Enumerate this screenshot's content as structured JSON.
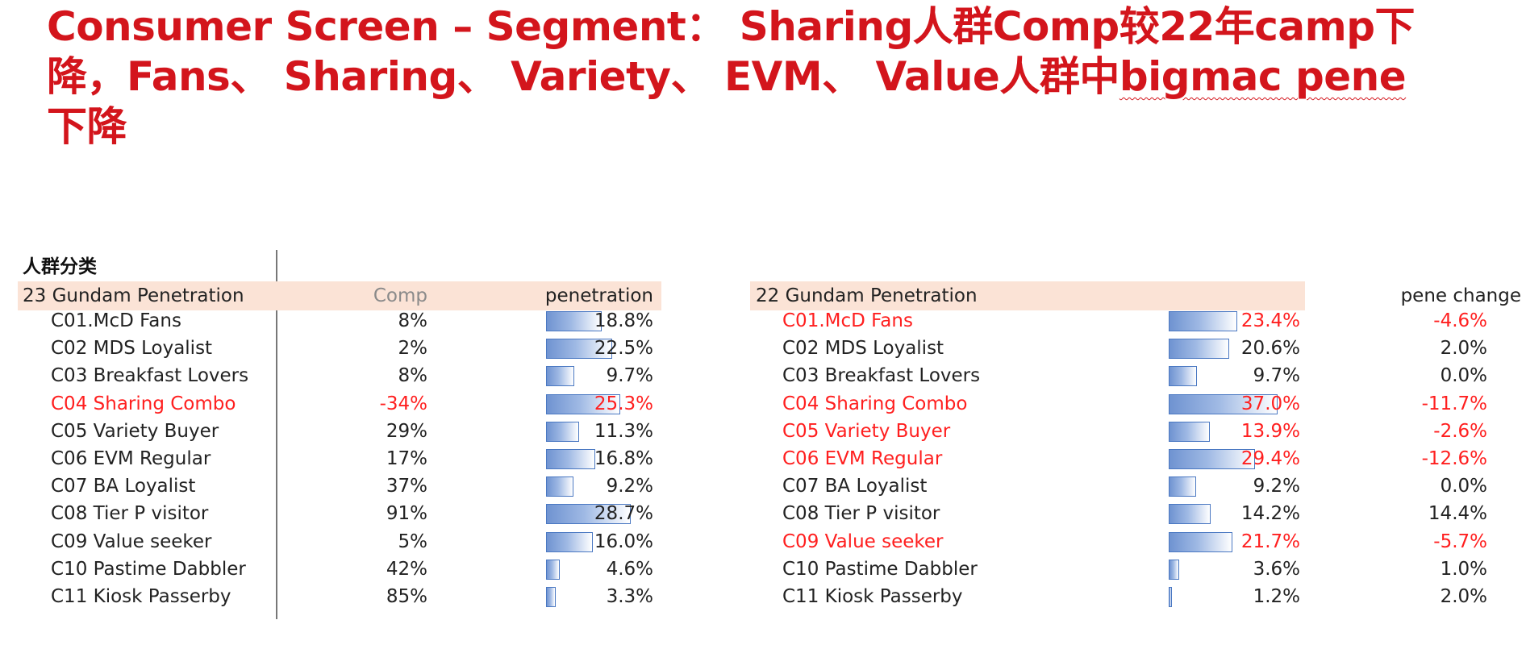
{
  "title": {
    "line1": "Consumer Screen – Segment： Sharing人群Comp较22年camp下",
    "line2_pre": "降，Fans、 Sharing、 Variety、 EVM、 Value人群中",
    "line2_wavy": "bigmac pene",
    "line3": "下降"
  },
  "section_label": "人群分类",
  "left_table": {
    "header": "23 Gundam Penetration",
    "comp_header": "Comp",
    "pen_header": "penetration"
  },
  "right_table": {
    "header": "22 Gundam Penetration",
    "change_header": "pene change"
  },
  "chart_data": {
    "type": "table",
    "bar_scale_max": 37.0,
    "colors": {
      "highlight": "#ff1f1f",
      "bar": "#4a78c2",
      "band": "#fbe3d6"
    },
    "rows": [
      {
        "segment": "C01.McD Fans",
        "comp": "8%",
        "pen23": 18.8,
        "pen23_label": "18.8%",
        "pen22": 23.4,
        "pen22_label": "23.4%",
        "change": "-4.6%",
        "hl_left": false,
        "hl_right": true
      },
      {
        "segment": "C02 MDS Loyalist",
        "comp": "2%",
        "pen23": 22.5,
        "pen23_label": "22.5%",
        "pen22": 20.6,
        "pen22_label": "20.6%",
        "change": "2.0%",
        "hl_left": false,
        "hl_right": false
      },
      {
        "segment": "C03 Breakfast Lovers",
        "comp": "8%",
        "pen23": 9.7,
        "pen23_label": "9.7%",
        "pen22": 9.7,
        "pen22_label": "9.7%",
        "change": "0.0%",
        "hl_left": false,
        "hl_right": false
      },
      {
        "segment": "C04 Sharing Combo",
        "comp": "-34%",
        "pen23": 25.3,
        "pen23_label": "25.3%",
        "pen22": 37.0,
        "pen22_label": "37.0%",
        "change": "-11.7%",
        "hl_left": true,
        "hl_right": true
      },
      {
        "segment": "C05 Variety Buyer",
        "comp": "29%",
        "pen23": 11.3,
        "pen23_label": "11.3%",
        "pen22": 13.9,
        "pen22_label": "13.9%",
        "change": "-2.6%",
        "hl_left": false,
        "hl_right": true
      },
      {
        "segment": "C06 EVM Regular",
        "comp": "17%",
        "pen23": 16.8,
        "pen23_label": "16.8%",
        "pen22": 29.4,
        "pen22_label": "29.4%",
        "change": "-12.6%",
        "hl_left": false,
        "hl_right": true
      },
      {
        "segment": "C07 BA Loyalist",
        "comp": "37%",
        "pen23": 9.2,
        "pen23_label": "9.2%",
        "pen22": 9.2,
        "pen22_label": "9.2%",
        "change": "0.0%",
        "hl_left": false,
        "hl_right": false
      },
      {
        "segment": "C08 Tier P visitor",
        "comp": "91%",
        "pen23": 28.7,
        "pen23_label": "28.7%",
        "pen22": 14.2,
        "pen22_label": "14.2%",
        "change": "14.4%",
        "hl_left": false,
        "hl_right": false
      },
      {
        "segment": "C09 Value seeker",
        "comp": "5%",
        "pen23": 16.0,
        "pen23_label": "16.0%",
        "pen22": 21.7,
        "pen22_label": "21.7%",
        "change": "-5.7%",
        "hl_left": false,
        "hl_right": true
      },
      {
        "segment": "C10 Pastime Dabbler",
        "comp": "42%",
        "pen23": 4.6,
        "pen23_label": "4.6%",
        "pen22": 3.6,
        "pen22_label": "3.6%",
        "change": "1.0%",
        "hl_left": false,
        "hl_right": false
      },
      {
        "segment": "C11 Kiosk Passerby",
        "comp": "85%",
        "pen23": 3.3,
        "pen23_label": "3.3%",
        "pen22": 1.2,
        "pen22_label": "1.2%",
        "change": "2.0%",
        "hl_left": false,
        "hl_right": false
      }
    ]
  }
}
